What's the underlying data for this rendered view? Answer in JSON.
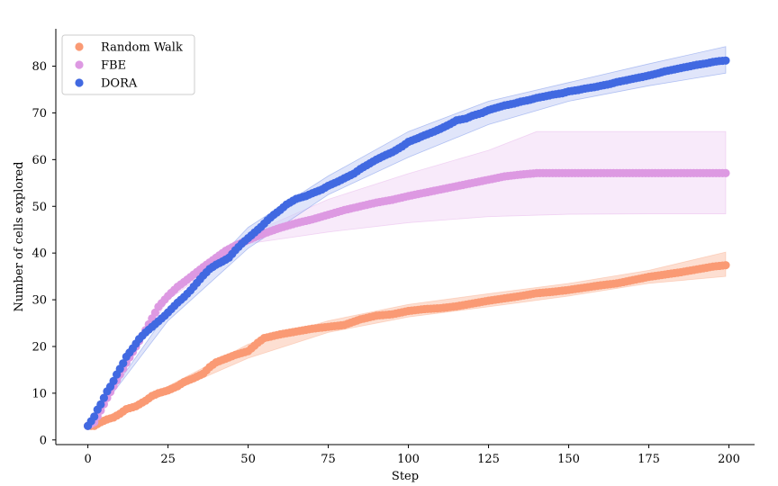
{
  "chart_data": {
    "type": "scatter",
    "xlabel": "Step",
    "ylabel": "Number of cells explored",
    "xlim": [
      -10,
      208
    ],
    "ylim": [
      -1,
      88
    ],
    "xticks": [
      0,
      25,
      50,
      75,
      100,
      125,
      150,
      175,
      200
    ],
    "yticks": [
      0,
      10,
      20,
      30,
      40,
      50,
      60,
      70,
      80
    ],
    "grid": false,
    "legend_position": "top-left",
    "series": [
      {
        "name": "Random Walk",
        "color": "#fa9a74",
        "band_color": "#fcc4ad",
        "points": [
          [
            0,
            3
          ],
          [
            2,
            3
          ],
          [
            4,
            3.8
          ],
          [
            6,
            4.4
          ],
          [
            8,
            4.8
          ],
          [
            10,
            5.6
          ],
          [
            12,
            6.6
          ],
          [
            15,
            7.2
          ],
          [
            18,
            8.4
          ],
          [
            20,
            9.4
          ],
          [
            22,
            10
          ],
          [
            25,
            10.6
          ],
          [
            28,
            11.5
          ],
          [
            30,
            12.4
          ],
          [
            33,
            13.2
          ],
          [
            36,
            14.2
          ],
          [
            38,
            15.6
          ],
          [
            40,
            16.6
          ],
          [
            43,
            17.4
          ],
          [
            46,
            18.2
          ],
          [
            50,
            19
          ],
          [
            53,
            20.8
          ],
          [
            55,
            21.8
          ],
          [
            60,
            22.6
          ],
          [
            65,
            23.2
          ],
          [
            70,
            23.8
          ],
          [
            75,
            24.2
          ],
          [
            80,
            24.6
          ],
          [
            85,
            25.8
          ],
          [
            90,
            26.6
          ],
          [
            95,
            26.9
          ],
          [
            100,
            27.6
          ],
          [
            105,
            28
          ],
          [
            110,
            28.2
          ],
          [
            115,
            28.6
          ],
          [
            120,
            29.2
          ],
          [
            125,
            29.8
          ],
          [
            130,
            30.3
          ],
          [
            135,
            30.8
          ],
          [
            140,
            31.4
          ],
          [
            145,
            31.7
          ],
          [
            150,
            32.1
          ],
          [
            155,
            32.6
          ],
          [
            160,
            33.1
          ],
          [
            165,
            33.5
          ],
          [
            170,
            34.2
          ],
          [
            175,
            34.9
          ],
          [
            180,
            35.4
          ],
          [
            185,
            35.9
          ],
          [
            190,
            36.5
          ],
          [
            195,
            37.1
          ],
          [
            199,
            37.4
          ]
        ],
        "band_lower": [
          [
            0,
            3
          ],
          [
            25,
            10
          ],
          [
            50,
            17.5
          ],
          [
            75,
            23
          ],
          [
            100,
            26.3
          ],
          [
            125,
            28.5
          ],
          [
            150,
            30.8
          ],
          [
            175,
            33.5
          ],
          [
            199,
            35
          ]
        ],
        "band_upper": [
          [
            0,
            3
          ],
          [
            25,
            11.5
          ],
          [
            50,
            20.5
          ],
          [
            75,
            25.5
          ],
          [
            100,
            29
          ],
          [
            125,
            31.3
          ],
          [
            150,
            33.5
          ],
          [
            175,
            36.3
          ],
          [
            199,
            40.2
          ]
        ]
      },
      {
        "name": "FBE",
        "color": "#dd99e2",
        "band_color": "#f2d8f5",
        "points": [
          [
            0,
            3
          ],
          [
            2,
            3.8
          ],
          [
            4,
            6.3
          ],
          [
            6,
            9
          ],
          [
            8,
            11.5
          ],
          [
            10,
            14
          ],
          [
            12,
            16.5
          ],
          [
            15,
            20
          ],
          [
            18,
            23.5
          ],
          [
            20,
            26
          ],
          [
            22,
            28.5
          ],
          [
            25,
            30.8
          ],
          [
            28,
            32.8
          ],
          [
            30,
            33.8
          ],
          [
            33,
            35.4
          ],
          [
            36,
            37
          ],
          [
            40,
            39
          ],
          [
            43,
            40.5
          ],
          [
            46,
            41.6
          ],
          [
            50,
            42.8
          ],
          [
            55,
            44.2
          ],
          [
            60,
            45.4
          ],
          [
            65,
            46.4
          ],
          [
            70,
            47.2
          ],
          [
            75,
            48.2
          ],
          [
            80,
            49.2
          ],
          [
            85,
            50
          ],
          [
            90,
            50.8
          ],
          [
            95,
            51.4
          ],
          [
            100,
            52.2
          ],
          [
            105,
            52.9
          ],
          [
            110,
            53.6
          ],
          [
            115,
            54.3
          ],
          [
            120,
            55
          ],
          [
            125,
            55.7
          ],
          [
            130,
            56.4
          ],
          [
            135,
            56.8
          ],
          [
            140,
            57.1
          ],
          [
            150,
            57.1
          ],
          [
            160,
            57.1
          ],
          [
            170,
            57.1
          ],
          [
            180,
            57.1
          ],
          [
            190,
            57.1
          ],
          [
            199,
            57.1
          ]
        ],
        "band_lower": [
          [
            0,
            3
          ],
          [
            25,
            30
          ],
          [
            50,
            42
          ],
          [
            75,
            44.5
          ],
          [
            100,
            46.5
          ],
          [
            125,
            47.8
          ],
          [
            150,
            48.3
          ],
          [
            175,
            48.4
          ],
          [
            199,
            48.4
          ]
        ],
        "band_upper": [
          [
            0,
            3
          ],
          [
            25,
            32
          ],
          [
            50,
            44
          ],
          [
            75,
            51.5
          ],
          [
            100,
            57
          ],
          [
            125,
            62
          ],
          [
            140,
            66
          ],
          [
            150,
            66
          ],
          [
            175,
            66
          ],
          [
            199,
            66
          ]
        ]
      },
      {
        "name": "DORA",
        "color": "#4169e1",
        "band_color": "#c7d0f5",
        "points": [
          [
            0,
            3
          ],
          [
            2,
            5
          ],
          [
            3,
            6.5
          ],
          [
            4,
            7.6
          ],
          [
            5,
            9
          ],
          [
            6,
            10.4
          ],
          [
            7,
            11.4
          ],
          [
            8,
            12.6
          ],
          [
            9,
            14
          ],
          [
            10,
            15.2
          ],
          [
            11,
            16.4
          ],
          [
            12,
            17.8
          ],
          [
            14,
            19.6
          ],
          [
            16,
            21.6
          ],
          [
            18,
            23
          ],
          [
            20,
            24.2
          ],
          [
            22,
            25.4
          ],
          [
            24,
            26.6
          ],
          [
            26,
            28
          ],
          [
            28,
            29.4
          ],
          [
            30,
            30.6
          ],
          [
            32,
            32
          ],
          [
            34,
            33.6
          ],
          [
            36,
            35.2
          ],
          [
            38,
            36.6
          ],
          [
            40,
            37.5
          ],
          [
            42,
            38.2
          ],
          [
            44,
            39
          ],
          [
            46,
            40.6
          ],
          [
            48,
            42
          ],
          [
            50,
            43.2
          ],
          [
            52,
            44.4
          ],
          [
            54,
            45.6
          ],
          [
            56,
            47
          ],
          [
            58,
            48.2
          ],
          [
            60,
            49.2
          ],
          [
            62,
            50.4
          ],
          [
            65,
            51.6
          ],
          [
            68,
            52.2
          ],
          [
            70,
            52.8
          ],
          [
            73,
            53.6
          ],
          [
            75,
            54.4
          ],
          [
            78,
            55.3
          ],
          [
            80,
            56
          ],
          [
            83,
            57
          ],
          [
            85,
            58
          ],
          [
            88,
            59.2
          ],
          [
            90,
            60
          ],
          [
            93,
            61
          ],
          [
            95,
            61.6
          ],
          [
            98,
            62.8
          ],
          [
            100,
            63.8
          ],
          [
            103,
            64.6
          ],
          [
            105,
            65.2
          ],
          [
            108,
            66
          ],
          [
            110,
            66.6
          ],
          [
            113,
            67.6
          ],
          [
            115,
            68.4
          ],
          [
            118,
            68.8
          ],
          [
            120,
            69.4
          ],
          [
            123,
            70
          ],
          [
            125,
            70.6
          ],
          [
            128,
            71.2
          ],
          [
            130,
            71.6
          ],
          [
            133,
            72
          ],
          [
            135,
            72.4
          ],
          [
            138,
            72.8
          ],
          [
            140,
            73.2
          ],
          [
            143,
            73.6
          ],
          [
            145,
            73.9
          ],
          [
            148,
            74.2
          ],
          [
            150,
            74.6
          ],
          [
            153,
            74.9
          ],
          [
            155,
            75.2
          ],
          [
            158,
            75.5
          ],
          [
            160,
            75.8
          ],
          [
            163,
            76.2
          ],
          [
            165,
            76.6
          ],
          [
            168,
            77
          ],
          [
            170,
            77.3
          ],
          [
            173,
            77.7
          ],
          [
            175,
            78
          ],
          [
            178,
            78.5
          ],
          [
            180,
            78.9
          ],
          [
            183,
            79.3
          ],
          [
            185,
            79.6
          ],
          [
            188,
            80
          ],
          [
            190,
            80.3
          ],
          [
            193,
            80.6
          ],
          [
            195,
            80.9
          ],
          [
            197,
            81.1
          ],
          [
            199,
            81.2
          ]
        ],
        "band_lower": [
          [
            0,
            3
          ],
          [
            25,
            25.5
          ],
          [
            50,
            41
          ],
          [
            75,
            52.5
          ],
          [
            100,
            60.5
          ],
          [
            125,
            67.5
          ],
          [
            150,
            72.5
          ],
          [
            175,
            75.8
          ],
          [
            199,
            78.5
          ]
        ],
        "band_upper": [
          [
            0,
            3
          ],
          [
            25,
            27.5
          ],
          [
            50,
            45.5
          ],
          [
            75,
            56.5
          ],
          [
            100,
            66
          ],
          [
            125,
            72.5
          ],
          [
            150,
            76.5
          ],
          [
            175,
            80.5
          ],
          [
            199,
            84.2
          ]
        ]
      }
    ]
  }
}
